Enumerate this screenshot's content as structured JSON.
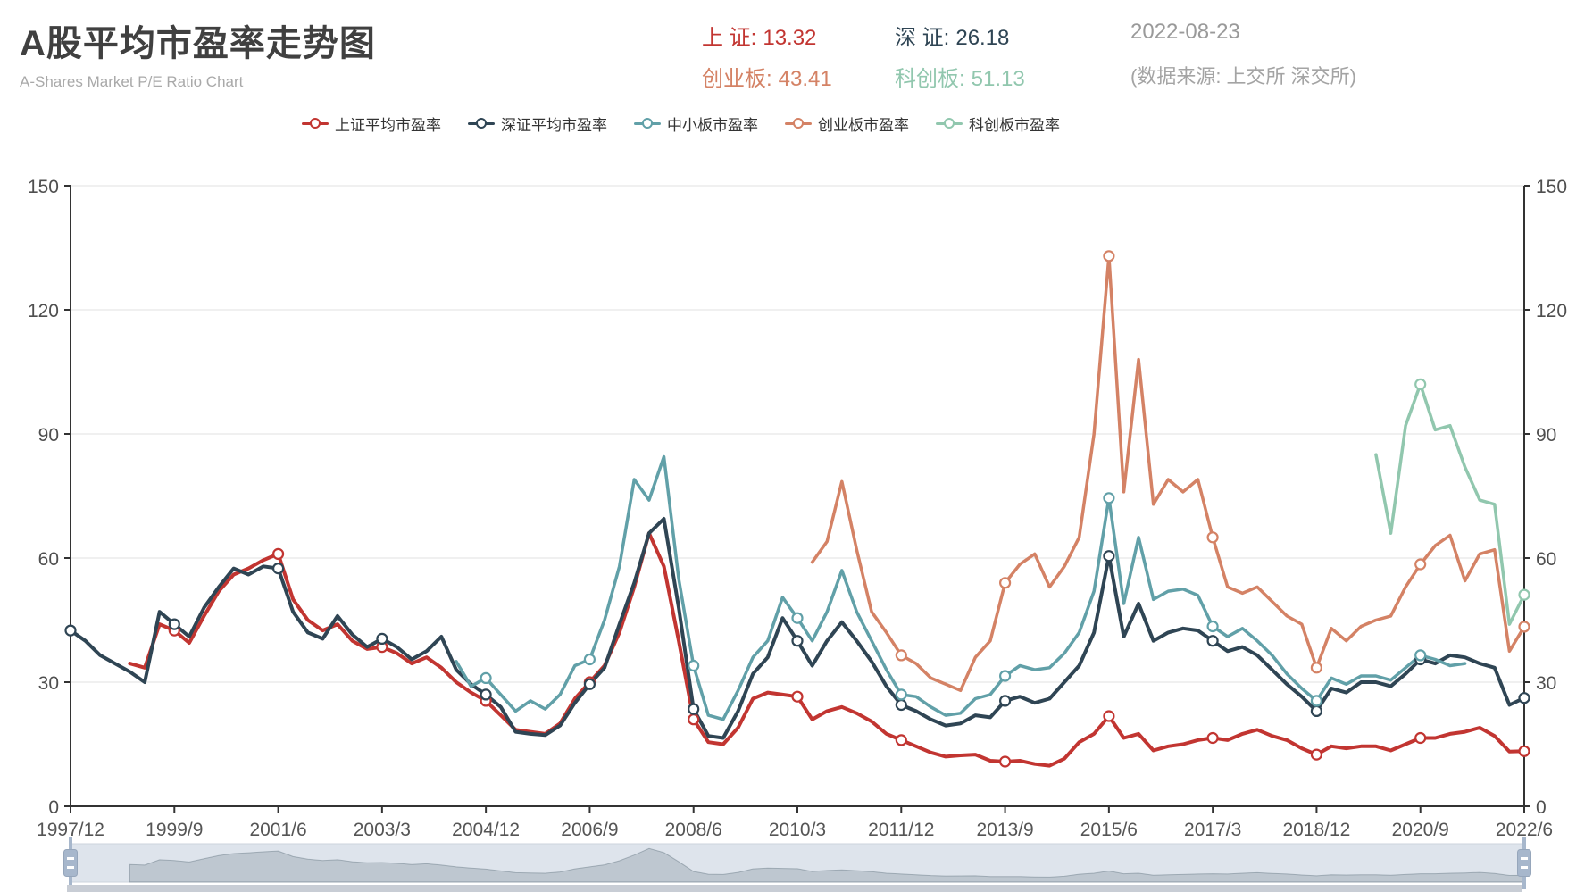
{
  "header": {
    "title": "A股平均市盈率走势图",
    "subtitle": "A-Shares Market P/E Ratio Chart"
  },
  "stats": {
    "sh": {
      "label": "上 证:",
      "value": "13.32",
      "color": "#c23531"
    },
    "sz": {
      "label": "深 证:",
      "value": "26.18",
      "color": "#2f4554"
    },
    "cyb": {
      "label": "创业板:",
      "value": "43.41",
      "color": "#d48265"
    },
    "kcb": {
      "label": "科创板:",
      "value": "51.13",
      "color": "#91c7ae"
    },
    "date": "2022-08-23",
    "source": "(数据来源: 上交所 深交所)"
  },
  "legend": {
    "items": [
      {
        "key": "sse",
        "label": "上证平均市盈率",
        "color": "#c23531"
      },
      {
        "key": "szse",
        "label": "深证平均市盈率",
        "color": "#2f4554"
      },
      {
        "key": "sme",
        "label": "中小板市盈率",
        "color": "#61a0a8"
      },
      {
        "key": "chinext",
        "label": "创业板市盈率",
        "color": "#d48265"
      },
      {
        "key": "star",
        "label": "科创板市盈率",
        "color": "#91c7ae"
      }
    ]
  },
  "chart_data": {
    "type": "line",
    "title": "A股平均市盈率走势图",
    "xlabel": "",
    "ylabel": "P/E",
    "ylim": [
      0,
      150
    ],
    "y_interval": 30,
    "y_axis_sides": "both",
    "grid": true,
    "legend_position": "top",
    "x_tick_every": 7,
    "x_tick_labels": [
      "1997/12",
      "1999/9",
      "2001/6",
      "2003/3",
      "2004/12",
      "2006/9",
      "2008/6",
      "2010/3",
      "2011/12",
      "2013/9",
      "2015/6",
      "2017/3",
      "2018/12",
      "2020/9",
      "2022/6"
    ],
    "x_categories": [
      "1997/12",
      "1998/3",
      "1998/6",
      "1998/9",
      "1998/12",
      "1999/3",
      "1999/6",
      "1999/9",
      "1999/12",
      "2000/3",
      "2000/6",
      "2000/9",
      "2000/12",
      "2001/3",
      "2001/6",
      "2001/9",
      "2001/12",
      "2002/3",
      "2002/6",
      "2002/9",
      "2002/12",
      "2003/3",
      "2003/6",
      "2003/9",
      "2003/12",
      "2004/3",
      "2004/6",
      "2004/9",
      "2004/12",
      "2005/3",
      "2005/6",
      "2005/9",
      "2005/12",
      "2006/3",
      "2006/6",
      "2006/9",
      "2006/12",
      "2007/3",
      "2007/6",
      "2007/9",
      "2007/12",
      "2008/3",
      "2008/6",
      "2008/9",
      "2008/12",
      "2009/3",
      "2009/6",
      "2009/9",
      "2009/12",
      "2010/3",
      "2010/6",
      "2010/9",
      "2010/12",
      "2011/3",
      "2011/6",
      "2011/9",
      "2011/12",
      "2012/3",
      "2012/6",
      "2012/9",
      "2012/12",
      "2013/3",
      "2013/6",
      "2013/9",
      "2013/12",
      "2014/3",
      "2014/6",
      "2014/9",
      "2014/12",
      "2015/3",
      "2015/6",
      "2015/9",
      "2015/12",
      "2016/3",
      "2016/6",
      "2016/9",
      "2016/12",
      "2017/3",
      "2017/6",
      "2017/9",
      "2017/12",
      "2018/3",
      "2018/6",
      "2018/9",
      "2018/12",
      "2019/3",
      "2019/6",
      "2019/9",
      "2019/12",
      "2020/3",
      "2020/6",
      "2020/9",
      "2020/12",
      "2021/3",
      "2021/6",
      "2021/9",
      "2021/12",
      "2022/3",
      "2022/6"
    ],
    "series": [
      {
        "key": "sse",
        "name": "上证平均市盈率",
        "color": "#c23531",
        "width": 4,
        "values": [
          null,
          null,
          null,
          null,
          34.5,
          33.5,
          44,
          42.5,
          39.5,
          46,
          52,
          56,
          57.5,
          59.5,
          61,
          50,
          45,
          42.5,
          44,
          40,
          38,
          38.5,
          37,
          34.5,
          36,
          33.5,
          30,
          27.5,
          25.5,
          22,
          18.5,
          18,
          17.5,
          20,
          26,
          30,
          34,
          42,
          53,
          66,
          58,
          40,
          21,
          15.5,
          15,
          19,
          26,
          27.5,
          27,
          26.5,
          21,
          23,
          24,
          22.5,
          20.5,
          17.5,
          16,
          14.5,
          13,
          12,
          12.3,
          12.5,
          11,
          10.8,
          11,
          10.2,
          9.8,
          11.5,
          15.5,
          17.5,
          21.8,
          16.5,
          17.5,
          13.5,
          14.5,
          15,
          16,
          16.5,
          16,
          17.5,
          18.5,
          17,
          16,
          14,
          12.5,
          14.5,
          14,
          14.5,
          14.5,
          13.5,
          15,
          16.5,
          16.5,
          17.5,
          18,
          19,
          17,
          13.2,
          13.32
        ]
      },
      {
        "key": "szse",
        "name": "深证平均市盈率",
        "color": "#2f4554",
        "width": 4,
        "values": [
          42.5,
          40,
          36.5,
          34.5,
          32.5,
          30,
          47,
          44,
          41,
          48,
          53,
          57.5,
          56,
          58,
          57.5,
          47,
          42,
          40.5,
          46,
          41.5,
          38.5,
          40.5,
          38.5,
          35.5,
          37.5,
          41,
          33,
          29.5,
          27,
          24,
          18,
          17.5,
          17.2,
          19.5,
          25,
          29.5,
          33.5,
          44,
          54,
          66,
          69.5,
          48,
          23.5,
          17,
          16.5,
          23,
          32,
          36,
          45.5,
          40,
          34,
          40,
          44.5,
          40,
          35,
          29,
          24.5,
          23,
          21,
          19.5,
          20,
          22,
          21.5,
          25.5,
          26.5,
          25,
          26,
          30,
          34,
          42,
          60.5,
          41,
          49,
          40,
          42,
          43,
          42.5,
          40,
          37.5,
          38.5,
          36.5,
          33,
          29.5,
          26.5,
          23,
          28.5,
          27.5,
          30,
          30,
          29,
          32,
          35.5,
          34.5,
          36.5,
          36,
          34.5,
          33.5,
          24.5,
          26.18
        ]
      },
      {
        "key": "sme",
        "name": "中小板市盈率",
        "color": "#61a0a8",
        "width": 3.5,
        "values": [
          null,
          null,
          null,
          null,
          null,
          null,
          null,
          null,
          null,
          null,
          null,
          null,
          null,
          null,
          null,
          null,
          null,
          null,
          null,
          null,
          null,
          null,
          null,
          null,
          null,
          null,
          35,
          29,
          31,
          27,
          23,
          25.5,
          23.5,
          27,
          34,
          35.5,
          45,
          58,
          79,
          74,
          84.5,
          55,
          34,
          22,
          21,
          28,
          36,
          40,
          50.5,
          45.5,
          40,
          47,
          57,
          47,
          40,
          33,
          27,
          26.5,
          24,
          22,
          22.5,
          26,
          27,
          31.5,
          34,
          33,
          33.5,
          37,
          42,
          52,
          74.5,
          49,
          65,
          50,
          52,
          52.5,
          51,
          43.5,
          41,
          43,
          40,
          36.5,
          32,
          28.5,
          25.5,
          31,
          29.5,
          31.5,
          31.5,
          30.5,
          33.5,
          36.5,
          35.5,
          34,
          34.5,
          null,
          null,
          null,
          null
        ]
      },
      {
        "key": "chinext",
        "name": "创业板市盈率",
        "color": "#d48265",
        "width": 3.5,
        "values": [
          null,
          null,
          null,
          null,
          null,
          null,
          null,
          null,
          null,
          null,
          null,
          null,
          null,
          null,
          null,
          null,
          null,
          null,
          null,
          null,
          null,
          null,
          null,
          null,
          null,
          null,
          null,
          null,
          null,
          null,
          null,
          null,
          null,
          null,
          null,
          null,
          null,
          null,
          null,
          null,
          null,
          null,
          null,
          null,
          null,
          null,
          null,
          null,
          null,
          null,
          59,
          64,
          78.5,
          62,
          47,
          42,
          36.5,
          34.5,
          31,
          29.5,
          28,
          36,
          40,
          54,
          58.5,
          61,
          53,
          58,
          65,
          90,
          133,
          76,
          108,
          73,
          79,
          76,
          79,
          65,
          53,
          51.5,
          53,
          49.5,
          46,
          44,
          33.5,
          43,
          40,
          43.5,
          45,
          46,
          53,
          58.5,
          63,
          65.5,
          54.5,
          61,
          62,
          37.5,
          43.41
        ]
      },
      {
        "key": "star",
        "name": "科创板市盈率",
        "color": "#91c7ae",
        "width": 3.5,
        "values": [
          null,
          null,
          null,
          null,
          null,
          null,
          null,
          null,
          null,
          null,
          null,
          null,
          null,
          null,
          null,
          null,
          null,
          null,
          null,
          null,
          null,
          null,
          null,
          null,
          null,
          null,
          null,
          null,
          null,
          null,
          null,
          null,
          null,
          null,
          null,
          null,
          null,
          null,
          null,
          null,
          null,
          null,
          null,
          null,
          null,
          null,
          null,
          null,
          null,
          null,
          null,
          null,
          null,
          null,
          null,
          null,
          null,
          null,
          null,
          null,
          null,
          null,
          null,
          null,
          null,
          null,
          null,
          null,
          null,
          null,
          null,
          null,
          null,
          null,
          null,
          null,
          null,
          null,
          null,
          null,
          null,
          null,
          null,
          null,
          null,
          null,
          null,
          null,
          85,
          66,
          92,
          102,
          91,
          92,
          82,
          74,
          73,
          44,
          51.13
        ]
      }
    ],
    "datazoom": {
      "shadow_series": "上证平均市盈率",
      "range_selected": "full",
      "track_color": "rgba(167,183,204,0.38)",
      "shadow_color": "rgba(47,69,84,0.18)",
      "handle_color": "#a7b7cc"
    }
  }
}
